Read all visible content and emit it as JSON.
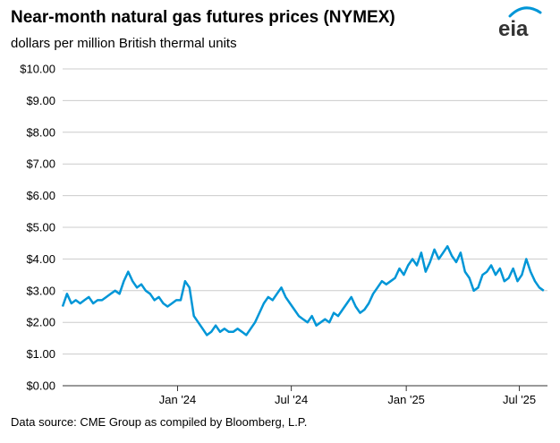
{
  "header": {
    "title": "Near-month natural gas futures prices (NYMEX)",
    "subtitle": "dollars per million British thermal units",
    "logo_text": "eia",
    "logo_color": "#0096d7"
  },
  "footer": {
    "source": "Data source: CME Group as compiled by Bloomberg, L.P."
  },
  "chart_data": {
    "type": "line",
    "title": "Near-month natural gas futures prices (NYMEX)",
    "subtitle": "dollars per million British thermal units",
    "x_tick_labels": [
      "Jan '24",
      "Jul '24",
      "Jan '25",
      "Jul '25"
    ],
    "x_tick_dates": [
      "2024-01-01",
      "2024-07-01",
      "2025-01-01",
      "2025-07-01"
    ],
    "y_tick_labels": [
      "$0.00",
      "$1.00",
      "$2.00",
      "$3.00",
      "$4.00",
      "$5.00",
      "$6.00",
      "$7.00",
      "$8.00",
      "$9.00",
      "$10.00"
    ],
    "ylim": [
      0,
      10
    ],
    "xlim": [
      "2023-07-01",
      "2025-08-15"
    ],
    "grid": true,
    "line_color": "#0096d7",
    "series": [
      {
        "x": [
          "2023-07-01",
          "2023-07-08",
          "2023-07-15",
          "2023-07-22",
          "2023-07-29",
          "2023-08-05",
          "2023-08-12",
          "2023-08-19",
          "2023-08-26",
          "2023-09-02",
          "2023-09-09",
          "2023-09-16",
          "2023-09-23",
          "2023-09-30",
          "2023-10-07",
          "2023-10-14",
          "2023-10-21",
          "2023-10-28",
          "2023-11-04",
          "2023-11-11",
          "2023-11-18",
          "2023-11-25",
          "2023-12-02",
          "2023-12-09",
          "2023-12-16",
          "2023-12-23",
          "2023-12-30",
          "2024-01-06",
          "2024-01-13",
          "2024-01-20",
          "2024-01-27",
          "2024-02-03",
          "2024-02-10",
          "2024-02-17",
          "2024-02-24",
          "2024-03-02",
          "2024-03-09",
          "2024-03-16",
          "2024-03-23",
          "2024-03-30",
          "2024-04-06",
          "2024-04-13",
          "2024-04-20",
          "2024-04-27",
          "2024-05-04",
          "2024-05-11",
          "2024-05-18",
          "2024-05-25",
          "2024-06-01",
          "2024-06-08",
          "2024-06-15",
          "2024-06-22",
          "2024-06-29",
          "2024-07-06",
          "2024-07-13",
          "2024-07-20",
          "2024-07-27",
          "2024-08-03",
          "2024-08-10",
          "2024-08-17",
          "2024-08-24",
          "2024-08-31",
          "2024-09-07",
          "2024-09-14",
          "2024-09-21",
          "2024-09-28",
          "2024-10-05",
          "2024-10-12",
          "2024-10-19",
          "2024-10-26",
          "2024-11-02",
          "2024-11-09",
          "2024-11-16",
          "2024-11-23",
          "2024-11-30",
          "2024-12-07",
          "2024-12-14",
          "2024-12-21",
          "2024-12-28",
          "2025-01-04",
          "2025-01-11",
          "2025-01-18",
          "2025-01-25",
          "2025-02-01",
          "2025-02-08",
          "2025-02-15",
          "2025-02-22",
          "2025-03-01",
          "2025-03-08",
          "2025-03-15",
          "2025-03-22",
          "2025-03-29",
          "2025-04-05",
          "2025-04-12",
          "2025-04-19",
          "2025-04-26",
          "2025-05-03",
          "2025-05-10",
          "2025-05-17",
          "2025-05-24",
          "2025-05-31",
          "2025-06-07",
          "2025-06-14",
          "2025-06-21",
          "2025-06-28",
          "2025-07-05",
          "2025-07-12",
          "2025-07-19",
          "2025-07-26",
          "2025-08-02",
          "2025-08-09"
        ],
        "values": [
          2.5,
          2.9,
          2.6,
          2.7,
          2.6,
          2.7,
          2.8,
          2.6,
          2.7,
          2.7,
          2.8,
          2.9,
          3.0,
          2.9,
          3.3,
          3.6,
          3.3,
          3.1,
          3.2,
          3.0,
          2.9,
          2.7,
          2.8,
          2.6,
          2.5,
          2.6,
          2.7,
          2.7,
          3.3,
          3.1,
          2.2,
          2.0,
          1.8,
          1.6,
          1.7,
          1.9,
          1.7,
          1.8,
          1.7,
          1.7,
          1.8,
          1.7,
          1.6,
          1.8,
          2.0,
          2.3,
          2.6,
          2.8,
          2.7,
          2.9,
          3.1,
          2.8,
          2.6,
          2.4,
          2.2,
          2.1,
          2.0,
          2.2,
          1.9,
          2.0,
          2.1,
          2.0,
          2.3,
          2.2,
          2.4,
          2.6,
          2.8,
          2.5,
          2.3,
          2.4,
          2.6,
          2.9,
          3.1,
          3.3,
          3.2,
          3.3,
          3.4,
          3.7,
          3.5,
          3.8,
          4.0,
          3.8,
          4.2,
          3.6,
          3.9,
          4.3,
          4.0,
          4.2,
          4.4,
          4.1,
          3.9,
          4.2,
          3.6,
          3.4,
          3.0,
          3.1,
          3.5,
          3.6,
          3.8,
          3.5,
          3.7,
          3.3,
          3.4,
          3.7,
          3.3,
          3.5,
          4.0,
          3.6,
          3.3,
          3.1,
          3.0
        ]
      }
    ]
  }
}
